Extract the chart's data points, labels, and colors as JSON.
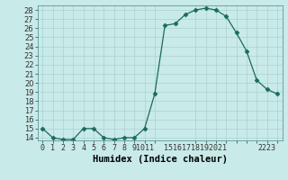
{
  "x": [
    0,
    1,
    2,
    3,
    4,
    5,
    6,
    7,
    8,
    9,
    10,
    11,
    12,
    13,
    14,
    15,
    16,
    17,
    18,
    19,
    20,
    21,
    22,
    23
  ],
  "y": [
    15,
    14,
    13.8,
    13.8,
    15,
    15,
    14,
    13.8,
    14,
    14,
    15,
    18.8,
    26.3,
    26.5,
    27.5,
    28,
    28.2,
    28,
    27.3,
    25.5,
    23.5,
    20.3,
    19.3,
    18.8
  ],
  "line_color": "#1a6b5a",
  "marker": "D",
  "marker_size": 2.5,
  "bg_color": "#c8eae8",
  "grid_color": "#aed0ce",
  "xlabel": "Humidex (Indice chaleur)",
  "ylim_min": 14,
  "ylim_max": 28,
  "xlim_min": -0.5,
  "xlim_max": 23.5,
  "yticks": [
    14,
    15,
    16,
    17,
    18,
    19,
    20,
    21,
    22,
    23,
    24,
    25,
    26,
    27,
    28
  ],
  "xtick_positions": [
    0,
    1,
    2,
    3,
    4,
    5,
    6,
    7,
    8,
    9,
    10,
    11,
    15,
    16,
    17,
    18,
    19,
    20,
    21,
    22,
    23
  ],
  "xtick_labels": [
    "0",
    "1",
    "2",
    "3",
    "4",
    "5",
    "6",
    "7",
    "8",
    "9",
    "1011",
    "",
    "15161718192021",
    "",
    "2223",
    "",
    "",
    "",
    "",
    "",
    ""
  ],
  "tick_fontsize": 6,
  "xlabel_fontsize": 7.5,
  "spine_color": "#5a9a98"
}
